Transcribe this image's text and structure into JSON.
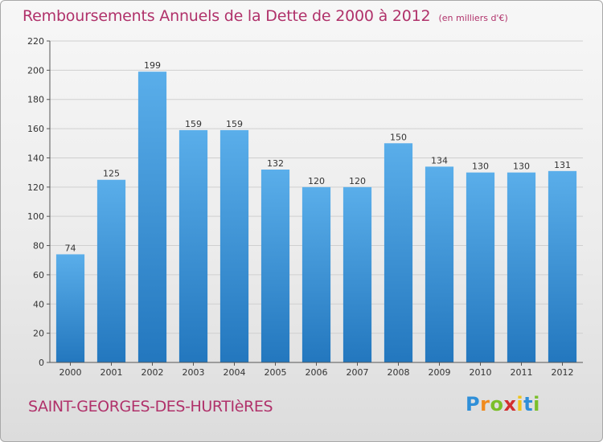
{
  "header": {
    "title": "Remboursements Annuels de la Dette de 2000 à 2012",
    "unit": "(en milliers d'€)"
  },
  "footer": {
    "commune": "SAINT-GEORGES-DES-HURTIèRES",
    "logo": "Proxiti"
  },
  "colors": {
    "bar_top": "#5aaeea",
    "bar_bottom": "#2377be",
    "title": "#b0316a",
    "grid": "#cfcfcf"
  },
  "chart_data": {
    "type": "bar",
    "categories": [
      "2000",
      "2001",
      "2002",
      "2003",
      "2004",
      "2005",
      "2006",
      "2007",
      "2008",
      "2009",
      "2010",
      "2011",
      "2012"
    ],
    "values": [
      74,
      125,
      199,
      159,
      159,
      132,
      120,
      120,
      150,
      134,
      130,
      130,
      131
    ],
    "ylim": [
      0,
      220
    ],
    "yticks": [
      0,
      20,
      40,
      60,
      80,
      100,
      120,
      140,
      160,
      180,
      200,
      220
    ],
    "grid": true,
    "data_labels": true
  }
}
